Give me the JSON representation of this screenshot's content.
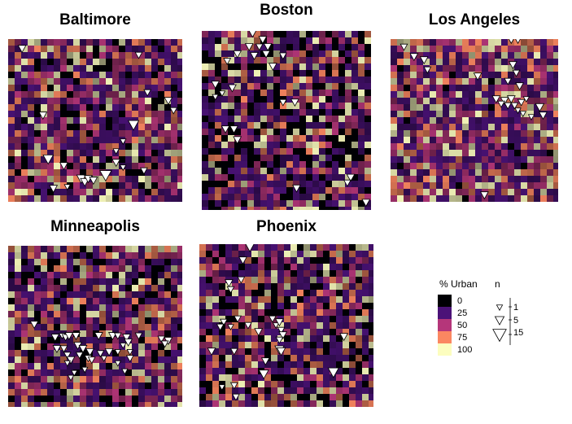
{
  "panels": [
    {
      "id": "baltimore",
      "title": "Baltimore",
      "seed": 11,
      "density": 0.55,
      "markers": [
        {
          "x": 0.08,
          "y": 0.06,
          "n": 3
        },
        {
          "x": 0.75,
          "y": 0.1,
          "n": 2
        },
        {
          "x": 0.8,
          "y": 0.33,
          "n": 2
        },
        {
          "x": 0.92,
          "y": 0.38,
          "n": 3
        },
        {
          "x": 0.95,
          "y": 0.44,
          "n": 2
        },
        {
          "x": 0.72,
          "y": 0.53,
          "n": 8
        },
        {
          "x": 0.2,
          "y": 0.47,
          "n": 3
        },
        {
          "x": 0.66,
          "y": 0.63,
          "n": 1
        },
        {
          "x": 0.62,
          "y": 0.69,
          "n": 1
        },
        {
          "x": 0.23,
          "y": 0.74,
          "n": 7
        },
        {
          "x": 0.32,
          "y": 0.78,
          "n": 3
        },
        {
          "x": 0.62,
          "y": 0.76,
          "n": 3
        },
        {
          "x": 0.66,
          "y": 0.79,
          "n": 1
        },
        {
          "x": 0.78,
          "y": 0.81,
          "n": 2
        },
        {
          "x": 0.42,
          "y": 0.86,
          "n": 5
        },
        {
          "x": 0.44,
          "y": 0.88,
          "n": 4
        },
        {
          "x": 0.46,
          "y": 0.86,
          "n": 3
        },
        {
          "x": 0.49,
          "y": 0.87,
          "n": 3
        },
        {
          "x": 0.56,
          "y": 0.84,
          "n": 10
        },
        {
          "x": 0.26,
          "y": 0.92,
          "n": 3
        },
        {
          "x": 0.34,
          "y": 0.91,
          "n": 1
        }
      ]
    },
    {
      "id": "boston",
      "title": "Boston",
      "seed": 23,
      "density": 0.42,
      "markers": [
        {
          "x": 0.3,
          "y": 0.01,
          "n": 6
        },
        {
          "x": 0.36,
          "y": 0.05,
          "n": 3
        },
        {
          "x": 0.28,
          "y": 0.09,
          "n": 3
        },
        {
          "x": 0.34,
          "y": 0.09,
          "n": 2
        },
        {
          "x": 0.39,
          "y": 0.09,
          "n": 3
        },
        {
          "x": 0.21,
          "y": 0.13,
          "n": 3
        },
        {
          "x": 0.31,
          "y": 0.14,
          "n": 3
        },
        {
          "x": 0.38,
          "y": 0.13,
          "n": 3
        },
        {
          "x": 0.48,
          "y": 0.14,
          "n": 2
        },
        {
          "x": 0.15,
          "y": 0.17,
          "n": 2
        },
        {
          "x": 0.42,
          "y": 0.2,
          "n": 3
        },
        {
          "x": 0.08,
          "y": 0.3,
          "n": 3
        },
        {
          "x": 0.12,
          "y": 0.35,
          "n": 1
        },
        {
          "x": 0.08,
          "y": 0.37,
          "n": 1
        },
        {
          "x": 0.18,
          "y": 0.32,
          "n": 3
        },
        {
          "x": 0.48,
          "y": 0.4,
          "n": 2
        },
        {
          "x": 0.55,
          "y": 0.4,
          "n": 3
        },
        {
          "x": 0.14,
          "y": 0.55,
          "n": 3
        },
        {
          "x": 0.19,
          "y": 0.55,
          "n": 3
        },
        {
          "x": 0.21,
          "y": 0.61,
          "n": 3
        },
        {
          "x": 0.88,
          "y": 0.82,
          "n": 3
        },
        {
          "x": 0.86,
          "y": 0.85,
          "n": 2
        },
        {
          "x": 0.56,
          "y": 0.88,
          "n": 3
        },
        {
          "x": 0.97,
          "y": 0.96,
          "n": 3
        }
      ]
    },
    {
      "id": "los-angeles",
      "title": "Los Angeles",
      "seed": 37,
      "density": 0.62,
      "markers": [
        {
          "x": 0.72,
          "y": 0.01,
          "n": 1
        },
        {
          "x": 0.76,
          "y": 0.01,
          "n": 1
        },
        {
          "x": 0.08,
          "y": 0.05,
          "n": 2
        },
        {
          "x": 0.14,
          "y": 0.11,
          "n": 3
        },
        {
          "x": 0.2,
          "y": 0.13,
          "n": 3
        },
        {
          "x": 0.22,
          "y": 0.19,
          "n": 2
        },
        {
          "x": 0.52,
          "y": 0.23,
          "n": 3
        },
        {
          "x": 0.73,
          "y": 0.16,
          "n": 3
        },
        {
          "x": 0.75,
          "y": 0.21,
          "n": 2
        },
        {
          "x": 0.7,
          "y": 0.26,
          "n": 2
        },
        {
          "x": 0.77,
          "y": 0.29,
          "n": 3
        },
        {
          "x": 0.63,
          "y": 0.37,
          "n": 3
        },
        {
          "x": 0.68,
          "y": 0.38,
          "n": 3
        },
        {
          "x": 0.72,
          "y": 0.37,
          "n": 3
        },
        {
          "x": 0.66,
          "y": 0.4,
          "n": 2
        },
        {
          "x": 0.7,
          "y": 0.41,
          "n": 2
        },
        {
          "x": 0.74,
          "y": 0.41,
          "n": 2
        },
        {
          "x": 0.78,
          "y": 0.39,
          "n": 2
        },
        {
          "x": 0.81,
          "y": 0.37,
          "n": 1
        },
        {
          "x": 0.76,
          "y": 0.44,
          "n": 1
        },
        {
          "x": 0.89,
          "y": 0.42,
          "n": 4
        },
        {
          "x": 0.91,
          "y": 0.47,
          "n": 3
        },
        {
          "x": 0.84,
          "y": 0.48,
          "n": 1
        },
        {
          "x": 0.79,
          "y": 0.46,
          "n": 1
        },
        {
          "x": 0.56,
          "y": 0.96,
          "n": 3
        }
      ]
    },
    {
      "id": "minneapolis",
      "title": "Minneapolis",
      "seed": 53,
      "density": 0.5,
      "markers": [
        {
          "x": 0.15,
          "y": 0.49,
          "n": 3
        },
        {
          "x": 0.27,
          "y": 0.57,
          "n": 3
        },
        {
          "x": 0.31,
          "y": 0.56,
          "n": 1
        },
        {
          "x": 0.33,
          "y": 0.57,
          "n": 2
        },
        {
          "x": 0.35,
          "y": 0.56,
          "n": 3
        },
        {
          "x": 0.39,
          "y": 0.56,
          "n": 3
        },
        {
          "x": 0.52,
          "y": 0.56,
          "n": 3
        },
        {
          "x": 0.6,
          "y": 0.56,
          "n": 3
        },
        {
          "x": 0.63,
          "y": 0.56,
          "n": 2
        },
        {
          "x": 0.68,
          "y": 0.57,
          "n": 3
        },
        {
          "x": 0.75,
          "y": 0.56,
          "n": 2
        },
        {
          "x": 0.69,
          "y": 0.6,
          "n": 3
        },
        {
          "x": 0.66,
          "y": 0.62,
          "n": 1
        },
        {
          "x": 0.88,
          "y": 0.58,
          "n": 2
        },
        {
          "x": 0.92,
          "y": 0.59,
          "n": 3
        },
        {
          "x": 0.9,
          "y": 0.61,
          "n": 2
        },
        {
          "x": 0.28,
          "y": 0.64,
          "n": 3
        },
        {
          "x": 0.32,
          "y": 0.64,
          "n": 2
        },
        {
          "x": 0.4,
          "y": 0.62,
          "n": 3
        },
        {
          "x": 0.43,
          "y": 0.64,
          "n": 3
        },
        {
          "x": 0.34,
          "y": 0.68,
          "n": 2
        },
        {
          "x": 0.36,
          "y": 0.71,
          "n": 3
        },
        {
          "x": 0.41,
          "y": 0.68,
          "n": 2
        },
        {
          "x": 0.47,
          "y": 0.66,
          "n": 3
        },
        {
          "x": 0.46,
          "y": 0.7,
          "n": 2
        },
        {
          "x": 0.53,
          "y": 0.67,
          "n": 2
        },
        {
          "x": 0.55,
          "y": 0.7,
          "n": 1
        },
        {
          "x": 0.58,
          "y": 0.66,
          "n": 3
        },
        {
          "x": 0.63,
          "y": 0.66,
          "n": 1
        },
        {
          "x": 0.7,
          "y": 0.66,
          "n": 1
        },
        {
          "x": 0.34,
          "y": 0.73,
          "n": 1
        },
        {
          "x": 0.48,
          "y": 0.71,
          "n": 2
        },
        {
          "x": 0.63,
          "y": 0.73,
          "n": 1
        },
        {
          "x": 0.7,
          "y": 0.7,
          "n": 2
        },
        {
          "x": 0.44,
          "y": 0.77,
          "n": 1
        },
        {
          "x": 0.67,
          "y": 0.78,
          "n": 1
        },
        {
          "x": 0.38,
          "y": 0.79,
          "n": 1
        },
        {
          "x": 0.36,
          "y": 0.82,
          "n": 1
        }
      ]
    },
    {
      "id": "phoenix",
      "title": "Phoenix",
      "seed": 71,
      "density": 0.48,
      "markers": [
        {
          "x": 0.29,
          "y": 0.02,
          "n": 5
        },
        {
          "x": 0.25,
          "y": 0.1,
          "n": 3
        },
        {
          "x": 0.24,
          "y": 0.22,
          "n": 2
        },
        {
          "x": 0.17,
          "y": 0.24,
          "n": 3
        },
        {
          "x": 0.18,
          "y": 0.28,
          "n": 2
        },
        {
          "x": 0.22,
          "y": 0.46,
          "n": 2
        },
        {
          "x": 0.14,
          "y": 0.48,
          "n": 2
        },
        {
          "x": 0.12,
          "y": 0.51,
          "n": 2
        },
        {
          "x": 0.18,
          "y": 0.51,
          "n": 1
        },
        {
          "x": 0.28,
          "y": 0.5,
          "n": 2
        },
        {
          "x": 0.34,
          "y": 0.54,
          "n": 3
        },
        {
          "x": 0.42,
          "y": 0.46,
          "n": 2
        },
        {
          "x": 0.44,
          "y": 0.5,
          "n": 1
        },
        {
          "x": 0.46,
          "y": 0.48,
          "n": 3
        },
        {
          "x": 0.47,
          "y": 0.53,
          "n": 2
        },
        {
          "x": 0.48,
          "y": 0.56,
          "n": 3
        },
        {
          "x": 0.46,
          "y": 0.59,
          "n": 2
        },
        {
          "x": 0.83,
          "y": 0.57,
          "n": 3
        },
        {
          "x": 0.07,
          "y": 0.66,
          "n": 3
        },
        {
          "x": 0.2,
          "y": 0.66,
          "n": 2
        },
        {
          "x": 0.46,
          "y": 0.65,
          "n": 5
        },
        {
          "x": 0.47,
          "y": 0.66,
          "n": 4
        },
        {
          "x": 0.38,
          "y": 0.72,
          "n": 3
        },
        {
          "x": 0.37,
          "y": 0.8,
          "n": 6
        },
        {
          "x": 0.77,
          "y": 0.79,
          "n": 8
        },
        {
          "x": 0.2,
          "y": 0.87,
          "n": 2
        },
        {
          "x": 0.13,
          "y": 0.88,
          "n": 1
        },
        {
          "x": 0.21,
          "y": 0.94,
          "n": 2
        }
      ]
    }
  ],
  "legend": {
    "urban_title": "% Urban",
    "n_title": "n",
    "urban_bins": [
      {
        "label": "0",
        "color": "#000004"
      },
      {
        "label": "25",
        "color": "#4b1278"
      },
      {
        "label": "50",
        "color": "#b5367a"
      },
      {
        "label": "75",
        "color": "#fb8761"
      },
      {
        "label": "100",
        "color": "#fcfdbf"
      }
    ],
    "size_bins": [
      {
        "label": "1",
        "n": 1
      },
      {
        "label": "5",
        "n": 5
      },
      {
        "label": "15",
        "n": 15
      }
    ]
  },
  "colors": {
    "marker_fill": "#ffffff",
    "marker_stroke": "#000000",
    "background": "#000004"
  }
}
